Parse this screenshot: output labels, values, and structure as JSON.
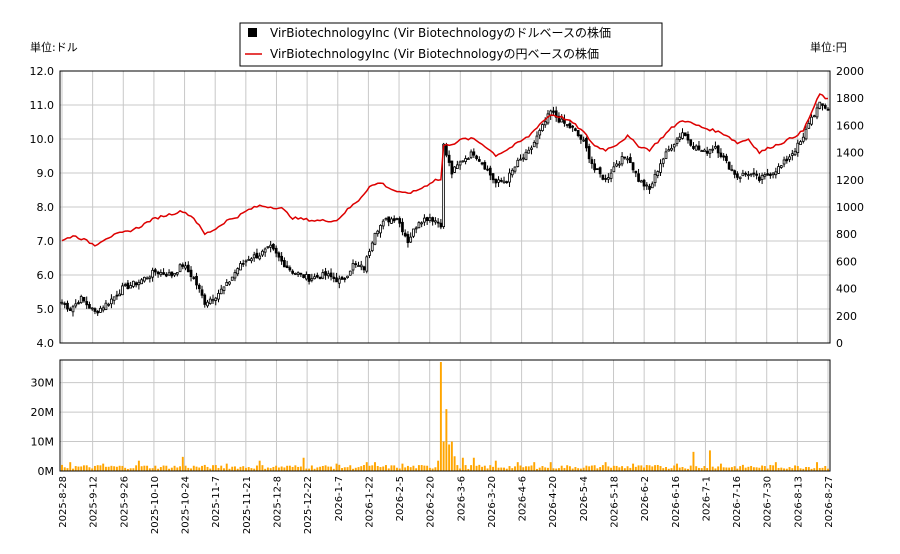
{
  "legend": {
    "usd_label": "VirBiotechnologyInc (Vir Biotechnologyのドルベースの株価",
    "jpy_label": "VirBiotechnologyInc (Vir Biotechnologyの円ベースの株価"
  },
  "axis_titles": {
    "left": "単位:ドル",
    "right": "単位:円"
  },
  "colors": {
    "candle": "#000000",
    "jpy_line": "#dd0000",
    "volume": "#ffa500",
    "grid": "#c8c8c8"
  },
  "chart_data": [
    {
      "type": "candlestick",
      "title": "",
      "ylim_left": [
        4.0,
        12.0
      ],
      "yticks_left": [
        "4.0",
        "5.0",
        "6.0",
        "7.0",
        "8.0",
        "9.0",
        "10.0",
        "11.0",
        "12.0"
      ],
      "ylim_right": [
        0,
        2000
      ],
      "yticks_right": [
        "0",
        "200",
        "400",
        "600",
        "800",
        "1000",
        "1200",
        "1400",
        "1600",
        "1800",
        "2000"
      ],
      "x_ticks": [
        "2025-8-28",
        "2025-9-12",
        "2025-9-26",
        "2025-10-10",
        "2025-10-24",
        "2025-11-7",
        "2025-11-21",
        "2025-12-8",
        "2025-12-22",
        "2026-1-7",
        "2026-1-22",
        "2026-2-5",
        "2026-2-20",
        "2026-3-6",
        "2026-3-20",
        "2026-4-6",
        "2026-4-20",
        "2026-5-4",
        "2026-5-18",
        "2026-6-2",
        "2026-6-16",
        "2026-7-1",
        "2026-7-16",
        "2026-7-30",
        "2026-8-13",
        "2026-8-27"
      ],
      "usd_close_keypoints": [
        [
          0,
          5.2
        ],
        [
          3,
          5.0
        ],
        [
          7,
          5.3
        ],
        [
          12,
          4.9
        ],
        [
          17,
          5.2
        ],
        [
          22,
          5.6
        ],
        [
          28,
          5.8
        ],
        [
          34,
          6.1
        ],
        [
          40,
          6.0
        ],
        [
          44,
          6.3
        ],
        [
          48,
          5.9
        ],
        [
          52,
          5.2
        ],
        [
          56,
          5.4
        ],
        [
          60,
          5.7
        ],
        [
          64,
          6.2
        ],
        [
          68,
          6.5
        ],
        [
          72,
          6.6
        ],
        [
          76,
          6.8
        ],
        [
          80,
          6.4
        ],
        [
          84,
          6.1
        ],
        [
          90,
          5.9
        ],
        [
          96,
          6.0
        ],
        [
          102,
          5.8
        ],
        [
          106,
          6.3
        ],
        [
          110,
          6.2
        ],
        [
          114,
          7.3
        ],
        [
          118,
          7.6
        ],
        [
          122,
          7.7
        ],
        [
          126,
          7.0
        ],
        [
          130,
          7.6
        ],
        [
          134,
          7.7
        ],
        [
          138,
          7.5
        ],
        [
          139,
          9.8
        ],
        [
          142,
          9.0
        ],
        [
          146,
          9.4
        ],
        [
          150,
          9.6
        ],
        [
          154,
          9.2
        ],
        [
          158,
          8.7
        ],
        [
          162,
          8.8
        ],
        [
          166,
          9.3
        ],
        [
          170,
          9.6
        ],
        [
          174,
          10.2
        ],
        [
          178,
          10.8
        ],
        [
          182,
          10.5
        ],
        [
          186,
          10.3
        ],
        [
          190,
          9.9
        ],
        [
          194,
          9.1
        ],
        [
          198,
          8.8
        ],
        [
          202,
          9.3
        ],
        [
          206,
          9.5
        ],
        [
          210,
          8.8
        ],
        [
          214,
          8.5
        ],
        [
          218,
          9.3
        ],
        [
          222,
          9.8
        ],
        [
          226,
          10.2
        ],
        [
          230,
          9.8
        ],
        [
          234,
          9.6
        ],
        [
          238,
          9.8
        ],
        [
          242,
          9.3
        ],
        [
          246,
          8.9
        ],
        [
          250,
          9.0
        ],
        [
          254,
          8.8
        ],
        [
          258,
          9.0
        ],
        [
          262,
          9.2
        ],
        [
          266,
          9.6
        ],
        [
          270,
          10.0
        ],
        [
          272,
          10.5
        ],
        [
          276,
          11.0
        ],
        [
          279,
          10.9
        ]
      ],
      "jpy_close_keypoints": [
        [
          0,
          750
        ],
        [
          4,
          790
        ],
        [
          8,
          760
        ],
        [
          12,
          720
        ],
        [
          16,
          770
        ],
        [
          20,
          800
        ],
        [
          24,
          820
        ],
        [
          28,
          850
        ],
        [
          32,
          900
        ],
        [
          36,
          930
        ],
        [
          40,
          950
        ],
        [
          44,
          970
        ],
        [
          48,
          920
        ],
        [
          52,
          800
        ],
        [
          56,
          840
        ],
        [
          60,
          900
        ],
        [
          64,
          930
        ],
        [
          68,
          980
        ],
        [
          72,
          1010
        ],
        [
          76,
          1000
        ],
        [
          80,
          990
        ],
        [
          84,
          920
        ],
        [
          88,
          910
        ],
        [
          92,
          900
        ],
        [
          96,
          900
        ],
        [
          100,
          900
        ],
        [
          104,
          980
        ],
        [
          108,
          1050
        ],
        [
          112,
          1150
        ],
        [
          116,
          1180
        ],
        [
          120,
          1130
        ],
        [
          124,
          1100
        ],
        [
          128,
          1110
        ],
        [
          132,
          1150
        ],
        [
          136,
          1200
        ],
        [
          138,
          1200
        ],
        [
          139,
          1450
        ],
        [
          143,
          1470
        ],
        [
          146,
          1500
        ],
        [
          150,
          1500
        ],
        [
          154,
          1450
        ],
        [
          158,
          1380
        ],
        [
          162,
          1420
        ],
        [
          166,
          1470
        ],
        [
          170,
          1520
        ],
        [
          174,
          1610
        ],
        [
          178,
          1680
        ],
        [
          182,
          1660
        ],
        [
          186,
          1620
        ],
        [
          190,
          1550
        ],
        [
          194,
          1450
        ],
        [
          198,
          1420
        ],
        [
          202,
          1460
        ],
        [
          206,
          1520
        ],
        [
          210,
          1450
        ],
        [
          214,
          1420
        ],
        [
          218,
          1500
        ],
        [
          222,
          1580
        ],
        [
          226,
          1640
        ],
        [
          230,
          1610
        ],
        [
          234,
          1580
        ],
        [
          238,
          1560
        ],
        [
          242,
          1530
        ],
        [
          246,
          1470
        ],
        [
          250,
          1500
        ],
        [
          254,
          1400
        ],
        [
          258,
          1440
        ],
        [
          262,
          1470
        ],
        [
          266,
          1510
        ],
        [
          270,
          1560
        ],
        [
          272,
          1650
        ],
        [
          276,
          1830
        ],
        [
          279,
          1790
        ]
      ]
    },
    {
      "type": "bar",
      "title": "",
      "ylim": [
        0,
        37000000
      ],
      "yticks": [
        "0M",
        "10M",
        "20M",
        "30M"
      ],
      "volume_spikes": [
        [
          3,
          3000000
        ],
        [
          15,
          2500000
        ],
        [
          28,
          3500000
        ],
        [
          44,
          4800000
        ],
        [
          60,
          2500000
        ],
        [
          72,
          3500000
        ],
        [
          88,
          4500000
        ],
        [
          100,
          2500000
        ],
        [
          111,
          3000000
        ],
        [
          114,
          3000000
        ],
        [
          124,
          2500000
        ],
        [
          137,
          3500000
        ],
        [
          138,
          37000000
        ],
        [
          139,
          10000000
        ],
        [
          140,
          21000000
        ],
        [
          141,
          9000000
        ],
        [
          142,
          10000000
        ],
        [
          143,
          5000000
        ],
        [
          146,
          4500000
        ],
        [
          150,
          4500000
        ],
        [
          158,
          3500000
        ],
        [
          166,
          3000000
        ],
        [
          172,
          3000000
        ],
        [
          178,
          3000000
        ],
        [
          198,
          3000000
        ],
        [
          208,
          2500000
        ],
        [
          224,
          2500000
        ],
        [
          230,
          6500000
        ],
        [
          236,
          7000000
        ],
        [
          240,
          2500000
        ],
        [
          260,
          3000000
        ],
        [
          275,
          3000000
        ]
      ]
    }
  ]
}
